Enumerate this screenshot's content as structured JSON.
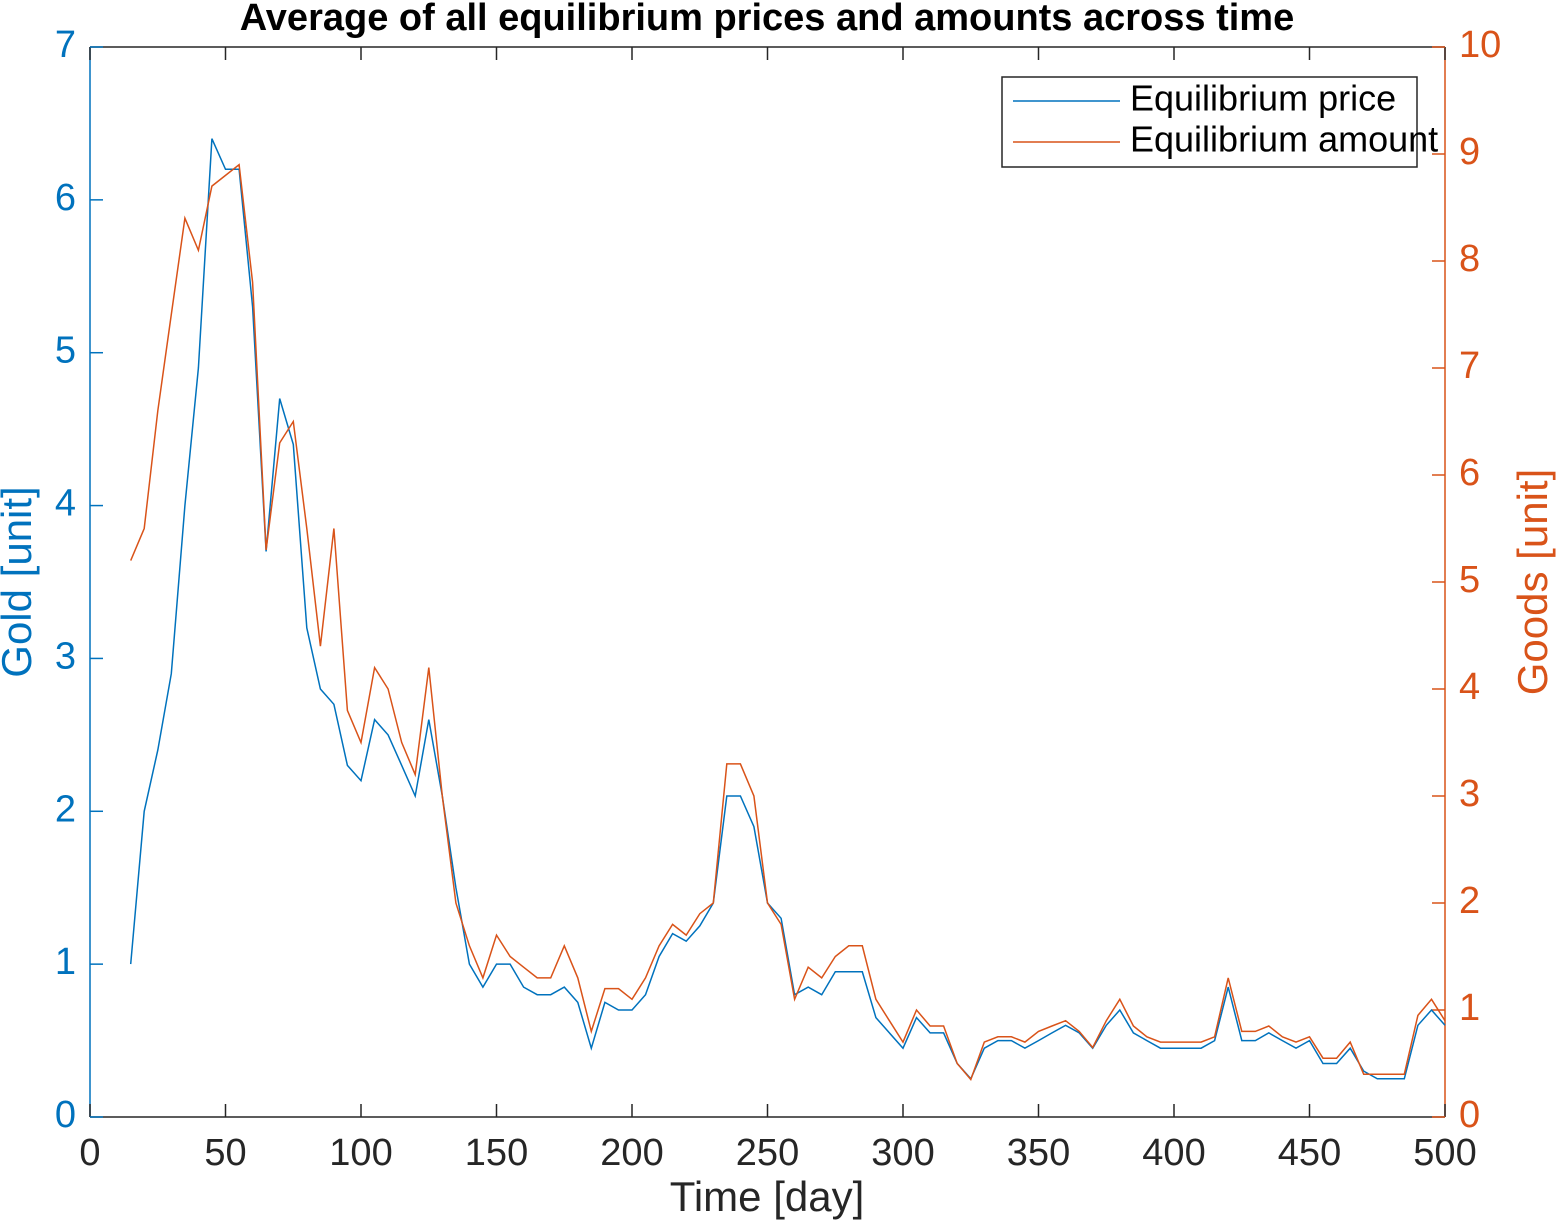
{
  "chart_data": {
    "type": "line",
    "title": "Average of all equilibrium prices and amounts across time",
    "x_label": "Time [day]",
    "y_label": "Gold [unit]",
    "y2_label": "Goods [unit]",
    "x": [
      15,
      20,
      25,
      30,
      35,
      40,
      45,
      50,
      55,
      60,
      65,
      70,
      75,
      80,
      85,
      90,
      95,
      100,
      105,
      110,
      115,
      120,
      125,
      130,
      135,
      140,
      145,
      150,
      155,
      160,
      165,
      170,
      175,
      180,
      185,
      190,
      195,
      200,
      205,
      210,
      215,
      220,
      225,
      230,
      235,
      240,
      245,
      250,
      255,
      260,
      265,
      270,
      275,
      280,
      285,
      290,
      295,
      300,
      305,
      310,
      315,
      320,
      325,
      330,
      335,
      340,
      345,
      350,
      355,
      360,
      365,
      370,
      375,
      380,
      385,
      390,
      395,
      400,
      405,
      410,
      415,
      420,
      425,
      430,
      435,
      440,
      445,
      450,
      455,
      460,
      465,
      470,
      475,
      480,
      485,
      490,
      495,
      500
    ],
    "series": [
      {
        "name": "Equilibrium price",
        "color": "#0072bd",
        "values": [
          1.0,
          2.0,
          2.4,
          2.9,
          4.0,
          4.9,
          6.4,
          6.2,
          6.2,
          5.3,
          3.7,
          4.7,
          4.4,
          3.2,
          2.8,
          2.7,
          2.3,
          2.2,
          2.6,
          2.5,
          2.3,
          2.1,
          2.6,
          2.1,
          1.5,
          1.0,
          0.85,
          1.0,
          1.0,
          0.85,
          0.8,
          0.8,
          0.85,
          0.75,
          0.45,
          0.75,
          0.7,
          0.7,
          0.8,
          1.05,
          1.2,
          1.15,
          1.25,
          1.4,
          2.1,
          2.1,
          1.9,
          1.4,
          1.3,
          0.8,
          0.85,
          0.8,
          0.95,
          0.95,
          0.95,
          0.65,
          0.55,
          0.45,
          0.65,
          0.55,
          0.55,
          0.35,
          0.25,
          0.45,
          0.5,
          0.5,
          0.45,
          0.5,
          0.55,
          0.6,
          0.55,
          0.45,
          0.6,
          0.7,
          0.55,
          0.5,
          0.45,
          0.45,
          0.45,
          0.45,
          0.5,
          0.85,
          0.5,
          0.5,
          0.55,
          0.5,
          0.45,
          0.5,
          0.35,
          0.35,
          0.45,
          0.3,
          0.25,
          0.25,
          0.25,
          0.6,
          0.7,
          0.6
        ]
      },
      {
        "name": "Equilibrium amount",
        "color": "#d95319",
        "axis": "y2",
        "values": [
          5.2,
          5.5,
          6.6,
          7.5,
          8.4,
          8.1,
          8.7,
          8.8,
          8.9,
          7.8,
          5.3,
          6.3,
          6.5,
          5.5,
          4.4,
          5.5,
          3.8,
          3.5,
          4.2,
          4.0,
          3.5,
          3.2,
          4.2,
          3.0,
          2.0,
          1.6,
          1.3,
          1.7,
          1.5,
          1.4,
          1.3,
          1.3,
          1.6,
          1.3,
          0.8,
          1.2,
          1.2,
          1.1,
          1.3,
          1.6,
          1.8,
          1.7,
          1.9,
          2.0,
          3.3,
          3.3,
          3.0,
          2.0,
          1.8,
          1.1,
          1.4,
          1.3,
          1.5,
          1.6,
          1.6,
          1.1,
          0.9,
          0.7,
          1.0,
          0.85,
          0.85,
          0.5,
          0.35,
          0.7,
          0.75,
          0.75,
          0.7,
          0.8,
          0.85,
          0.9,
          0.8,
          0.65,
          0.9,
          1.1,
          0.85,
          0.75,
          0.7,
          0.7,
          0.7,
          0.7,
          0.75,
          1.3,
          0.8,
          0.8,
          0.85,
          0.75,
          0.7,
          0.75,
          0.55,
          0.55,
          0.7,
          0.4,
          0.4,
          0.4,
          0.4,
          0.95,
          1.1,
          0.9
        ]
      }
    ],
    "xlim": [
      0,
      500
    ],
    "xticks": [
      0,
      50,
      100,
      150,
      200,
      250,
      300,
      350,
      400,
      450,
      500
    ],
    "ylim": [
      0,
      7
    ],
    "yticks": [
      0,
      1,
      2,
      3,
      4,
      5,
      6,
      7
    ],
    "y2lim": [
      0,
      10
    ],
    "y2ticks": [
      0,
      1,
      2,
      3,
      4,
      5,
      6,
      7,
      8,
      9,
      10
    ],
    "grid": false,
    "legend": "top-right"
  }
}
